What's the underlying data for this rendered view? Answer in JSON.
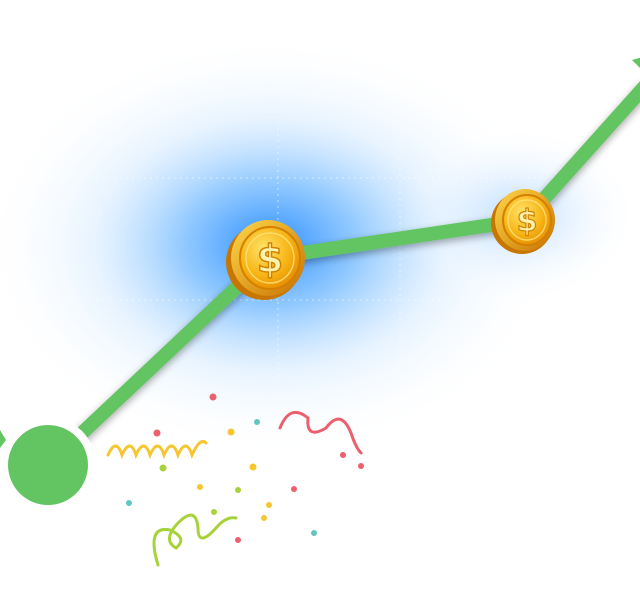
{
  "illustration": {
    "subject": "growth-line-with-coins",
    "colors": {
      "line": "#63c462",
      "start_dot": "#63c462",
      "glow": "#2a8cff",
      "coin_face": "#f7b516",
      "coin_rim": "#e08a00",
      "coin_symbol": "#fff3b0",
      "confetti_red": "#ec5f6c",
      "confetti_yellow": "#f6c530",
      "confetti_teal": "#62c6c0",
      "confetti_green": "#a8d23a"
    },
    "coins": [
      {
        "symbol": "$"
      },
      {
        "symbol": "$"
      }
    ]
  }
}
